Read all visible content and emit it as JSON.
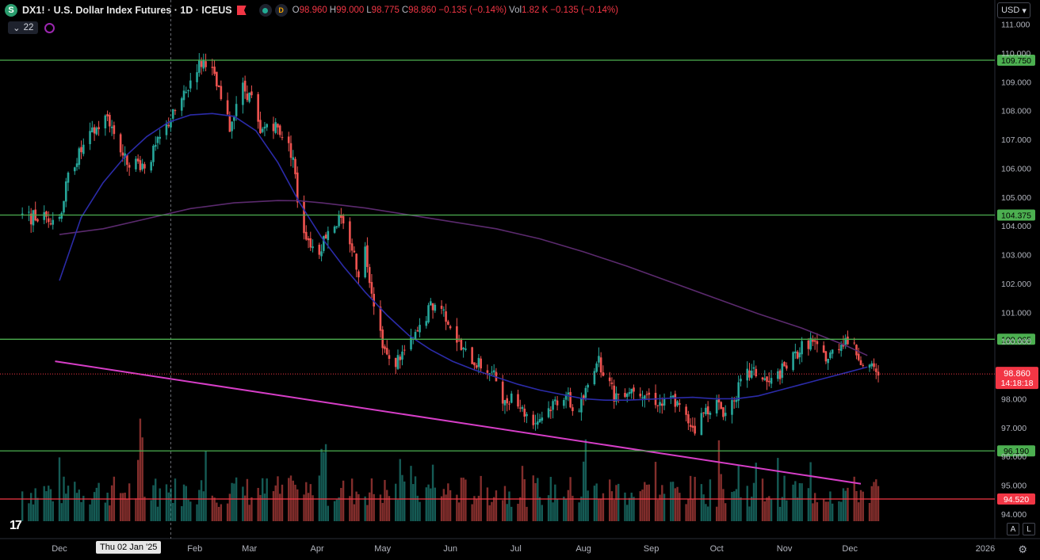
{
  "header": {
    "symbol_icon": "S",
    "title": "DX1! · U.S. Dollar Index Futures · 1D · ICEUS",
    "status_d": "D",
    "ohlc": [
      {
        "k": "O",
        "v": "98.960"
      },
      {
        "k": "H",
        "v": "99.000"
      },
      {
        "k": "L",
        "v": "98.775"
      },
      {
        "k": "C",
        "v": "98.860"
      },
      {
        "k": "",
        "v": "−0.135 (−0.14%)"
      },
      {
        "k": "Vol",
        "v": "1.82 K"
      },
      {
        "k": "",
        "v": "−0.135 (−0.14%)"
      }
    ],
    "indicator_count": "22"
  },
  "currency": "USD",
  "crosshair_date": "Thu 02 Jan '25",
  "bottom_buttons": [
    "A",
    "L"
  ],
  "colors": {
    "up": "#26a69a",
    "down": "#ef5350",
    "level": "#4caf50",
    "support": "#f23645",
    "trend": "#d63ec7",
    "ma_fast": "#2b2ba8",
    "ma_slow": "#5b2a6e"
  },
  "chart_data": {
    "type": "candlestick",
    "ylim": [
      93.2,
      111.4
    ],
    "y_ticks": [
      "111.000",
      "110.000",
      "109.000",
      "108.000",
      "107.000",
      "106.000",
      "105.000",
      "104.000",
      "103.000",
      "102.000",
      "101.000",
      "100.000",
      "99.000",
      "98.000",
      "97.000",
      "96.000",
      "95.000",
      "94.000"
    ],
    "x_ticks": [
      "Dec",
      "Feb",
      "Mar",
      "Apr",
      "May",
      "Jun",
      "Jul",
      "Aug",
      "Sep",
      "Oct",
      "Nov",
      "Dec",
      "2026"
    ],
    "x_tick_days": [
      0,
      62,
      87,
      118,
      148,
      179,
      209,
      240,
      271,
      301,
      332,
      362,
      424
    ],
    "last_day": 375,
    "price_path": [
      [
        0,
        104.3
      ],
      [
        5,
        106.0
      ],
      [
        15,
        107.2
      ],
      [
        22,
        107.8
      ],
      [
        30,
        106.3
      ],
      [
        40,
        106.1
      ],
      [
        50,
        107.6
      ],
      [
        58,
        108.6
      ],
      [
        62,
        109.5
      ],
      [
        68,
        109.8
      ],
      [
        73,
        108.6
      ],
      [
        78,
        107.4
      ],
      [
        83,
        108.9
      ],
      [
        88,
        108.4
      ],
      [
        92,
        107.1
      ],
      [
        96,
        107.7
      ],
      [
        102,
        107.2
      ],
      [
        107,
        106.4
      ],
      [
        110,
        104.2
      ],
      [
        115,
        103.4
      ],
      [
        118,
        103.0
      ],
      [
        123,
        103.9
      ],
      [
        128,
        104.2
      ],
      [
        133,
        103.5
      ],
      [
        137,
        102.4
      ],
      [
        140,
        103.2
      ],
      [
        143,
        101.8
      ],
      [
        146,
        100.6
      ],
      [
        149,
        99.7
      ],
      [
        152,
        99.0
      ],
      [
        155,
        99.4
      ],
      [
        160,
        99.8
      ],
      [
        165,
        100.4
      ],
      [
        170,
        101.2
      ],
      [
        174,
        101.3
      ],
      [
        179,
        100.6
      ],
      [
        184,
        99.7
      ],
      [
        190,
        99.3
      ],
      [
        196,
        99.0
      ],
      [
        201,
        98.6
      ],
      [
        204,
        97.8
      ],
      [
        208,
        98.3
      ],
      [
        212,
        97.6
      ],
      [
        218,
        97.2
      ],
      [
        222,
        97.5
      ],
      [
        227,
        97.9
      ],
      [
        232,
        98.2
      ],
      [
        236,
        97.4
      ],
      [
        240,
        98.0
      ],
      [
        246,
        99.4
      ],
      [
        250,
        98.9
      ],
      [
        254,
        98.1
      ],
      [
        259,
        98.3
      ],
      [
        264,
        98.4
      ],
      [
        270,
        98.1
      ],
      [
        276,
        97.8
      ],
      [
        281,
        98.0
      ],
      [
        287,
        97.3
      ],
      [
        291,
        97.0
      ],
      [
        296,
        97.6
      ],
      [
        300,
        97.9
      ],
      [
        305,
        97.5
      ],
      [
        310,
        98.2
      ],
      [
        314,
        98.8
      ],
      [
        319,
        98.9
      ],
      [
        325,
        98.5
      ],
      [
        330,
        98.9
      ],
      [
        335,
        99.3
      ],
      [
        340,
        99.8
      ],
      [
        344,
        100.0
      ],
      [
        348,
        99.6
      ],
      [
        352,
        99.4
      ],
      [
        356,
        99.8
      ],
      [
        360,
        100.1
      ],
      [
        364,
        99.7
      ],
      [
        368,
        99.3
      ],
      [
        372,
        99.0
      ],
      [
        375,
        98.86
      ]
    ],
    "ma_fast": [
      [
        0,
        102.1
      ],
      [
        10,
        104.3
      ],
      [
        20,
        105.5
      ],
      [
        30,
        106.4
      ],
      [
        40,
        107.1
      ],
      [
        50,
        107.6
      ],
      [
        60,
        107.85
      ],
      [
        70,
        107.9
      ],
      [
        80,
        107.8
      ],
      [
        90,
        107.3
      ],
      [
        100,
        106.2
      ],
      [
        110,
        104.8
      ],
      [
        120,
        103.6
      ],
      [
        130,
        102.6
      ],
      [
        140,
        101.7
      ],
      [
        150,
        100.9
      ],
      [
        160,
        100.2
      ],
      [
        170,
        99.7
      ],
      [
        180,
        99.3
      ],
      [
        190,
        99.0
      ],
      [
        200,
        98.75
      ],
      [
        210,
        98.5
      ],
      [
        220,
        98.3
      ],
      [
        230,
        98.15
      ],
      [
        240,
        98.0
      ],
      [
        250,
        97.95
      ],
      [
        260,
        97.95
      ],
      [
        270,
        97.98
      ],
      [
        280,
        98.02
      ],
      [
        290,
        98.05
      ],
      [
        300,
        98.0
      ],
      [
        310,
        98.0
      ],
      [
        320,
        98.1
      ],
      [
        330,
        98.3
      ],
      [
        340,
        98.5
      ],
      [
        350,
        98.7
      ],
      [
        360,
        98.9
      ],
      [
        370,
        99.1
      ]
    ],
    "ma_slow": [
      [
        0,
        103.7
      ],
      [
        20,
        103.9
      ],
      [
        40,
        104.25
      ],
      [
        60,
        104.6
      ],
      [
        80,
        104.8
      ],
      [
        100,
        104.88
      ],
      [
        110,
        104.87
      ],
      [
        120,
        104.8
      ],
      [
        140,
        104.62
      ],
      [
        160,
        104.38
      ],
      [
        180,
        104.14
      ],
      [
        200,
        103.9
      ],
      [
        220,
        103.55
      ],
      [
        240,
        103.1
      ],
      [
        260,
        102.6
      ],
      [
        280,
        102.05
      ],
      [
        300,
        101.5
      ],
      [
        320,
        100.95
      ],
      [
        340,
        100.45
      ],
      [
        360,
        99.85
      ],
      [
        370,
        99.5
      ]
    ],
    "levels": [
      {
        "label": "109.750",
        "value": 109.75,
        "color": "#4caf50"
      },
      {
        "label": "104.375",
        "value": 104.375,
        "color": "#4caf50"
      },
      {
        "label": "100.065",
        "value": 100.065,
        "color": "#4caf50"
      },
      {
        "label": "96.190",
        "value": 96.19,
        "color": "#4caf50"
      },
      {
        "label": "94.520",
        "value": 94.52,
        "color": "#f23645"
      }
    ],
    "trendline": [
      [
        -2,
        99.3
      ],
      [
        367,
        95.05
      ]
    ],
    "last_price": {
      "label": "98.860",
      "countdown": "14:18:18",
      "value": 98.86
    },
    "crosshair_day": 51
  }
}
